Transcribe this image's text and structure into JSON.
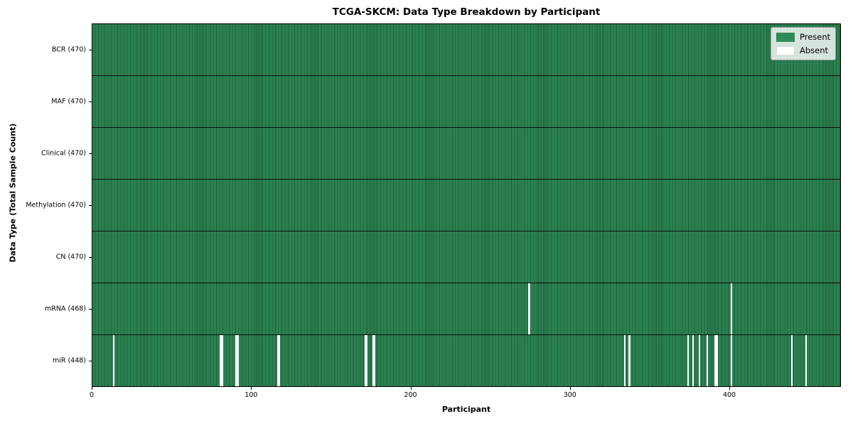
{
  "chart_data": {
    "type": "heatmap",
    "title": "TCGA-SKCM: Data Type Breakdown by Participant",
    "xlabel": "Participant",
    "ylabel": "Data Type (Total Sample Count)",
    "n_participants": 470,
    "x_ticks": [
      0,
      100,
      200,
      300,
      400
    ],
    "legend": {
      "present_label": "Present",
      "absent_label": "Absent",
      "position": "upper right"
    },
    "colors": {
      "present": "#2e8b57",
      "present_edge": "#1e5a38",
      "absent": "#ffffff"
    },
    "rows": [
      {
        "label": "BCR (470)",
        "data_type": "BCR",
        "present_count": 470,
        "absent_participants": []
      },
      {
        "label": "MAF (470)",
        "data_type": "MAF",
        "present_count": 470,
        "absent_participants": []
      },
      {
        "label": "Clinical (470)",
        "data_type": "Clinical",
        "present_count": 470,
        "absent_participants": []
      },
      {
        "label": "Methylation (470)",
        "data_type": "Methylation",
        "present_count": 470,
        "absent_participants": []
      },
      {
        "label": "CN (470)",
        "data_type": "CN",
        "present_count": 470,
        "absent_participants": []
      },
      {
        "label": "mRNA (468)",
        "data_type": "mRNA",
        "present_count": 468,
        "absent_participants": [
          274,
          401
        ]
      },
      {
        "label": "miR (448)",
        "data_type": "miR",
        "present_count": 448,
        "absent_participants": [
          13,
          80,
          81,
          90,
          91,
          116,
          117,
          171,
          172,
          176,
          177,
          334,
          337,
          374,
          377,
          381,
          386,
          391,
          392,
          401,
          439,
          448
        ]
      }
    ]
  }
}
